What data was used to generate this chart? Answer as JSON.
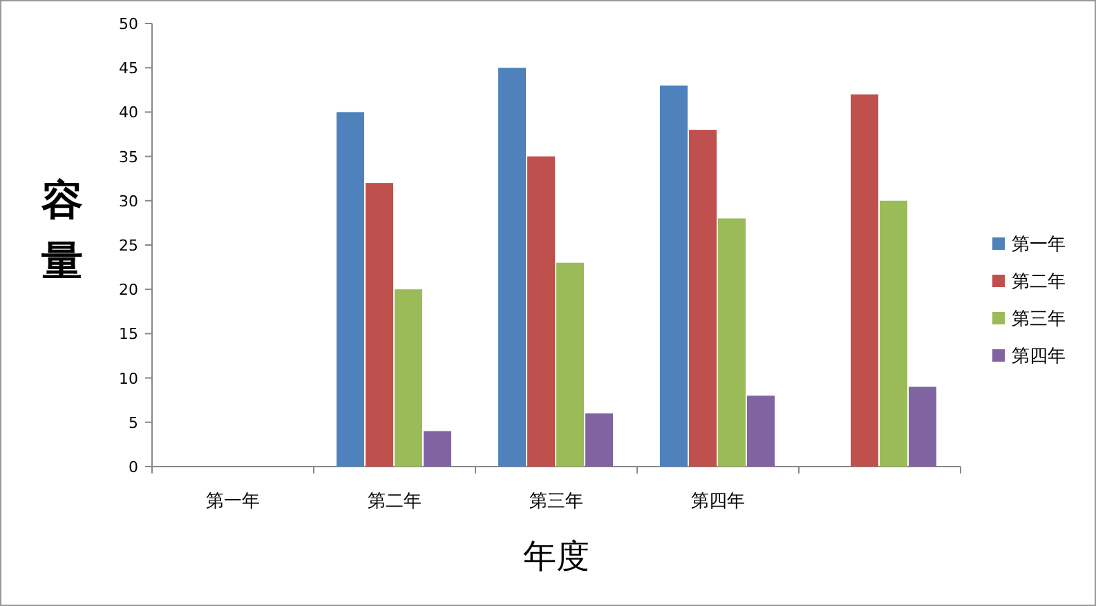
{
  "chart_data": {
    "type": "bar",
    "xlabel": "年度",
    "ylabel": "容量",
    "categories": [
      "第一年",
      "第二年",
      "第三年",
      "第四年",
      null
    ],
    "series": [
      {
        "name": "第一年",
        "color": "#4f81bd",
        "values": [
          null,
          40,
          45,
          43,
          null
        ]
      },
      {
        "name": "第二年",
        "color": "#c0504d",
        "values": [
          null,
          32,
          35,
          38,
          42
        ]
      },
      {
        "name": "第三年",
        "color": "#9bbb59",
        "values": [
          null,
          20,
          23,
          28,
          30
        ]
      },
      {
        "name": "第四年",
        "color": "#8064a2",
        "values": [
          null,
          4,
          6,
          8,
          9
        ]
      }
    ],
    "ylim": [
      0,
      50
    ],
    "yticks": [
      0,
      5,
      10,
      15,
      20,
      25,
      30,
      35,
      40,
      45,
      50
    ],
    "legend": "right",
    "grid": false
  }
}
